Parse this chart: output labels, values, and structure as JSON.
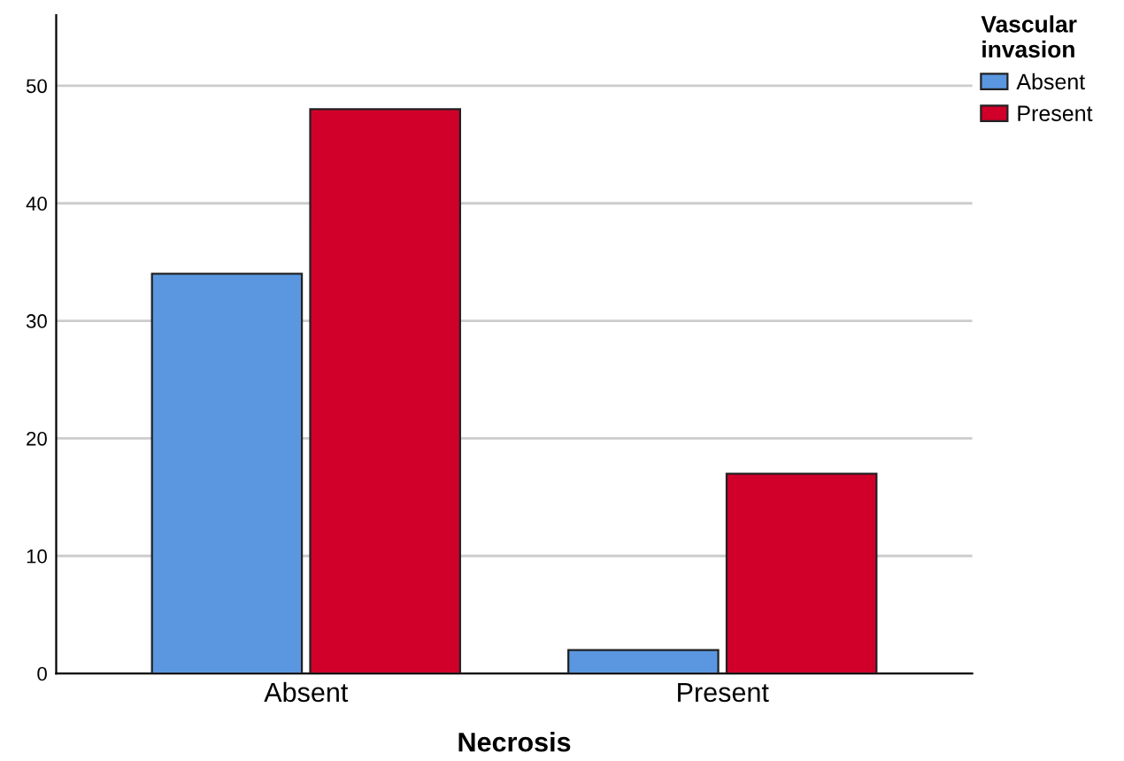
{
  "chart_data": {
    "type": "bar",
    "xlabel": "Necrosis",
    "legend_title": "Vascular\ninvasion",
    "categories": [
      "Absent",
      "Present"
    ],
    "series": [
      {
        "name": "Absent",
        "color": "#5a97e0",
        "values": [
          34,
          2
        ]
      },
      {
        "name": "Present",
        "color": "#d0002a",
        "values": [
          48,
          17
        ]
      }
    ],
    "ylim": [
      0,
      56
    ],
    "yticks": [
      0,
      10,
      20,
      30,
      40,
      50
    ],
    "grid": "y",
    "legend": "top right"
  }
}
